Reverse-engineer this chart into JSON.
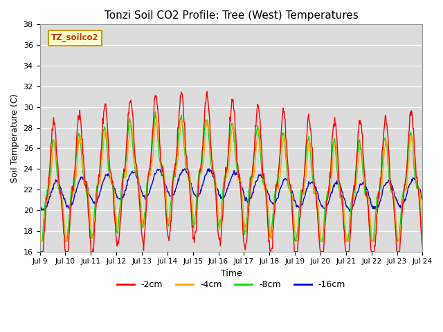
{
  "title": "Tonzi Soil CO2 Profile: Tree (West) Temperatures",
  "xlabel": "Time",
  "ylabel": "Soil Temperature (C)",
  "ylim": [
    16,
    38
  ],
  "yticks": [
    16,
    18,
    20,
    22,
    24,
    26,
    28,
    30,
    32,
    34,
    36,
    38
  ],
  "background_color": "#dcdcdc",
  "figure_color": "#ffffff",
  "legend_box_label": "TZ_soilco2",
  "legend_box_color": "#ffffcc",
  "legend_box_edge": "#cc9900",
  "lines": {
    "2cm": {
      "label": "-2cm",
      "color": "#ff0000"
    },
    "4cm": {
      "label": "-4cm",
      "color": "#ffa500"
    },
    "8cm": {
      "label": "-8cm",
      "color": "#00dd00"
    },
    "16cm": {
      "label": "-16cm",
      "color": "#0000cc"
    }
  },
  "start_day": 9,
  "end_day": 24,
  "n_points": 720
}
